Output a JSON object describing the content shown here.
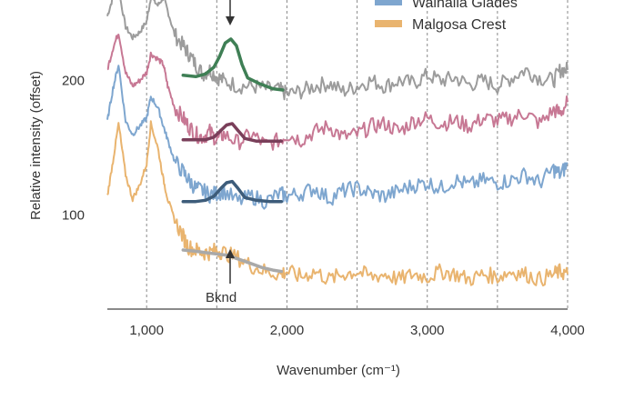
{
  "chart_data": {
    "type": "line",
    "title": "",
    "xlabel": "Wavenumber (cm⁻¹)",
    "ylabel": "Relative intensity (offset)",
    "xlim": [
      720,
      4000
    ],
    "ylim": [
      30,
      260
    ],
    "x_ticks": [
      {
        "value": 1000,
        "label": "1,000"
      },
      {
        "value": 2000,
        "label": "2,000"
      },
      {
        "value": 3000,
        "label": "3,000"
      },
      {
        "value": 4000,
        "label": "4,000"
      }
    ],
    "y_ticks": [
      {
        "value": 100,
        "label": "100"
      },
      {
        "value": 200,
        "label": "200"
      }
    ],
    "gridlines_x": [
      1000,
      1500,
      2000,
      2500,
      3000,
      3500,
      4000
    ],
    "legend": {
      "placement": "top-right",
      "entries": [
        {
          "label": "Walhalla Glades",
          "color": "#7ea6cf"
        },
        {
          "label": "Malgosa Crest",
          "color": "#e9b46f"
        }
      ]
    },
    "annotations": [
      {
        "text": "Bknd",
        "x": 1600,
        "y": 60
      }
    ],
    "series": [
      {
        "color": "#9c9c9c",
        "fit_color": "#3f7f55",
        "points": [
          [
            720,
            248
          ],
          [
            760,
            262
          ],
          [
            800,
            268
          ],
          [
            850,
            240
          ],
          [
            900,
            232
          ],
          [
            950,
            236
          ],
          [
            1000,
            244
          ],
          [
            1030,
            262
          ],
          [
            1080,
            256
          ],
          [
            1120,
            262
          ],
          [
            1150,
            252
          ],
          [
            1200,
            234
          ],
          [
            1260,
            226
          ],
          [
            1300,
            220
          ],
          [
            1350,
            212
          ],
          [
            1400,
            205
          ],
          [
            1450,
            208
          ],
          [
            1500,
            203
          ],
          [
            1550,
            200
          ],
          [
            1650,
            196
          ],
          [
            1750,
            196
          ],
          [
            1850,
            194
          ],
          [
            1950,
            193
          ],
          [
            2000,
            190
          ],
          [
            2100,
            192
          ],
          [
            2200,
            196
          ],
          [
            2300,
            198
          ],
          [
            2400,
            192
          ],
          [
            2500,
            196
          ],
          [
            2600,
            200
          ],
          [
            2700,
            196
          ],
          [
            2800,
            200
          ],
          [
            2900,
            198
          ],
          [
            3000,
            204
          ],
          [
            3100,
            200
          ],
          [
            3200,
            202
          ],
          [
            3300,
            197
          ],
          [
            3400,
            200
          ],
          [
            3500,
            196
          ],
          [
            3600,
            202
          ],
          [
            3700,
            208
          ],
          [
            3800,
            202
          ],
          [
            3900,
            200
          ],
          [
            3950,
            208
          ],
          [
            4000,
            208
          ]
        ],
        "fit": [
          [
            1260,
            204
          ],
          [
            1350,
            203
          ],
          [
            1420,
            205
          ],
          [
            1480,
            210
          ],
          [
            1520,
            218
          ],
          [
            1560,
            228
          ],
          [
            1600,
            231
          ],
          [
            1640,
            226
          ],
          [
            1680,
            212
          ],
          [
            1720,
            202
          ],
          [
            1800,
            198
          ],
          [
            1900,
            194
          ],
          [
            1970,
            193
          ]
        ]
      },
      {
        "color": "#c77894",
        "fit_color": "#7a3f5a",
        "points": [
          [
            720,
            208
          ],
          [
            760,
            224
          ],
          [
            800,
            236
          ],
          [
            850,
            206
          ],
          [
            900,
            196
          ],
          [
            950,
            200
          ],
          [
            1000,
            206
          ],
          [
            1030,
            220
          ],
          [
            1080,
            216
          ],
          [
            1120,
            212
          ],
          [
            1150,
            196
          ],
          [
            1200,
            180
          ],
          [
            1260,
            172
          ],
          [
            1300,
            166
          ],
          [
            1350,
            160
          ],
          [
            1400,
            158
          ],
          [
            1450,
            162
          ],
          [
            1500,
            156
          ],
          [
            1550,
            160
          ],
          [
            1650,
            154
          ],
          [
            1750,
            160
          ],
          [
            1850,
            152
          ],
          [
            1950,
            156
          ],
          [
            2000,
            160
          ],
          [
            2100,
            156
          ],
          [
            2200,
            162
          ],
          [
            2300,
            166
          ],
          [
            2400,
            158
          ],
          [
            2500,
            160
          ],
          [
            2600,
            166
          ],
          [
            2700,
            168
          ],
          [
            2800,
            162
          ],
          [
            2900,
            170
          ],
          [
            3000,
            172
          ],
          [
            3100,
            168
          ],
          [
            3200,
            170
          ],
          [
            3300,
            166
          ],
          [
            3400,
            172
          ],
          [
            3500,
            170
          ],
          [
            3600,
            172
          ],
          [
            3700,
            176
          ],
          [
            3800,
            168
          ],
          [
            3900,
            178
          ],
          [
            3950,
            176
          ],
          [
            4000,
            184
          ]
        ],
        "fit": [
          [
            1260,
            156
          ],
          [
            1350,
            156
          ],
          [
            1420,
            156
          ],
          [
            1480,
            158
          ],
          [
            1530,
            163
          ],
          [
            1570,
            167
          ],
          [
            1610,
            168
          ],
          [
            1650,
            163
          ],
          [
            1700,
            157
          ],
          [
            1780,
            155
          ],
          [
            1880,
            155
          ],
          [
            1960,
            155
          ]
        ]
      },
      {
        "color": "#7ea6cf",
        "fit_color": "#3d5c7a",
        "points": [
          [
            720,
            170
          ],
          [
            760,
            194
          ],
          [
            800,
            212
          ],
          [
            850,
            170
          ],
          [
            900,
            160
          ],
          [
            950,
            166
          ],
          [
            1000,
            172
          ],
          [
            1030,
            188
          ],
          [
            1080,
            180
          ],
          [
            1120,
            166
          ],
          [
            1150,
            156
          ],
          [
            1200,
            140
          ],
          [
            1260,
            132
          ],
          [
            1300,
            126
          ],
          [
            1350,
            120
          ],
          [
            1400,
            118
          ],
          [
            1450,
            115
          ],
          [
            1500,
            116
          ],
          [
            1550,
            118
          ],
          [
            1650,
            110
          ],
          [
            1750,
            114
          ],
          [
            1850,
            110
          ],
          [
            1950,
            116
          ],
          [
            2000,
            114
          ],
          [
            2100,
            116
          ],
          [
            2200,
            120
          ],
          [
            2300,
            112
          ],
          [
            2400,
            118
          ],
          [
            2500,
            120
          ],
          [
            2600,
            116
          ],
          [
            2700,
            114
          ],
          [
            2800,
            118
          ],
          [
            2900,
            122
          ],
          [
            3000,
            124
          ],
          [
            3100,
            120
          ],
          [
            3200,
            126
          ],
          [
            3300,
            122
          ],
          [
            3400,
            126
          ],
          [
            3500,
            124
          ],
          [
            3600,
            126
          ],
          [
            3700,
            130
          ],
          [
            3800,
            124
          ],
          [
            3900,
            134
          ],
          [
            3950,
            130
          ],
          [
            4000,
            138
          ]
        ],
        "fit": [
          [
            1260,
            110
          ],
          [
            1350,
            110
          ],
          [
            1420,
            111
          ],
          [
            1480,
            114
          ],
          [
            1530,
            120
          ],
          [
            1570,
            124
          ],
          [
            1610,
            125
          ],
          [
            1650,
            120
          ],
          [
            1700,
            113
          ],
          [
            1780,
            111
          ],
          [
            1880,
            110
          ],
          [
            1960,
            110
          ]
        ]
      },
      {
        "color": "#e9b46f",
        "fit_color": "#a9a9a9",
        "points": [
          [
            720,
            114
          ],
          [
            760,
            140
          ],
          [
            800,
            168
          ],
          [
            850,
            130
          ],
          [
            900,
            112
          ],
          [
            950,
            122
          ],
          [
            1000,
            138
          ],
          [
            1030,
            168
          ],
          [
            1080,
            150
          ],
          [
            1120,
            126
          ],
          [
            1150,
            112
          ],
          [
            1200,
            96
          ],
          [
            1260,
            84
          ],
          [
            1300,
            76
          ],
          [
            1350,
            74
          ],
          [
            1400,
            72
          ],
          [
            1450,
            72
          ],
          [
            1500,
            74
          ],
          [
            1550,
            72
          ],
          [
            1650,
            68
          ],
          [
            1750,
            62
          ],
          [
            1850,
            58
          ],
          [
            1950,
            56
          ],
          [
            2000,
            58
          ],
          [
            2100,
            54
          ],
          [
            2200,
            58
          ],
          [
            2300,
            52
          ],
          [
            2400,
            56
          ],
          [
            2500,
            58
          ],
          [
            2600,
            54
          ],
          [
            2700,
            56
          ],
          [
            2800,
            52
          ],
          [
            2900,
            56
          ],
          [
            3000,
            54
          ],
          [
            3100,
            58
          ],
          [
            3200,
            56
          ],
          [
            3300,
            52
          ],
          [
            3400,
            56
          ],
          [
            3500,
            54
          ],
          [
            3600,
            58
          ],
          [
            3700,
            56
          ],
          [
            3800,
            52
          ],
          [
            3900,
            56
          ],
          [
            3950,
            58
          ],
          [
            4000,
            56
          ]
        ],
        "fit": [
          [
            1260,
            74
          ],
          [
            1350,
            73
          ],
          [
            1420,
            72
          ],
          [
            1500,
            71
          ],
          [
            1580,
            70
          ],
          [
            1660,
            67
          ],
          [
            1740,
            64
          ],
          [
            1820,
            61
          ],
          [
            1900,
            59
          ],
          [
            1960,
            58
          ]
        ]
      }
    ]
  }
}
